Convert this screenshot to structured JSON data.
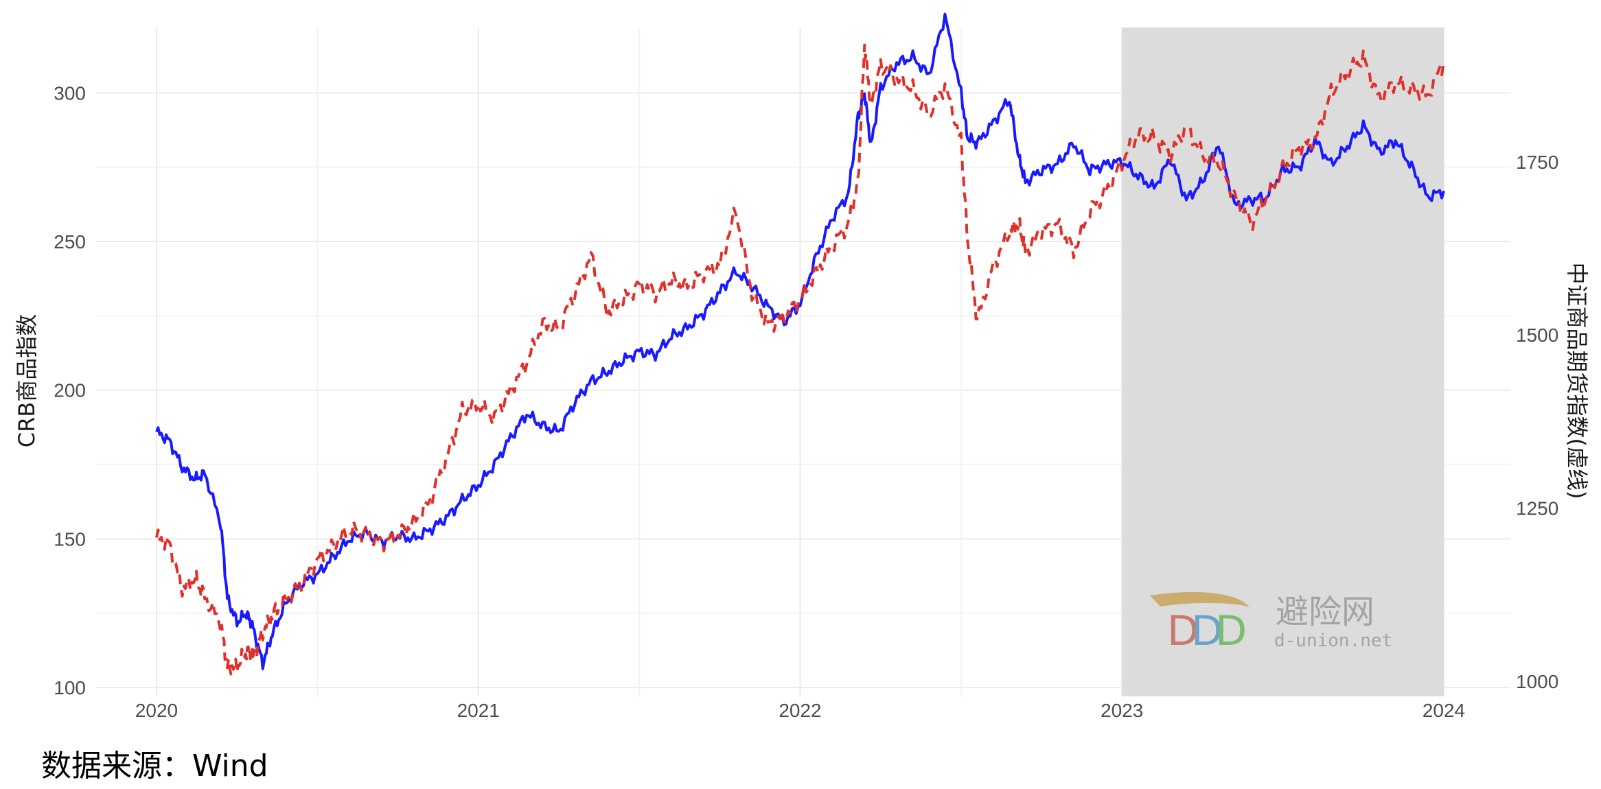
{
  "source_note": "数据来源：Wind",
  "watermark": {
    "name": "避险网",
    "domain": "d-union.net"
  },
  "colors": {
    "crb": "#1a1aff",
    "csi": "#e0302a",
    "shade": "#dcdcdc",
    "grid": "#ebebeb"
  },
  "chart_data": {
    "type": "line",
    "x_unit": "year",
    "x_ticks": [
      "2020",
      "2021",
      "2022",
      "2023",
      "2024"
    ],
    "xlim": [
      2020.0,
      2024.0
    ],
    "left_axis": {
      "label": "CRB商品指数",
      "ticks": [
        100,
        150,
        200,
        250,
        300
      ],
      "ylim": [
        97,
        322
      ]
    },
    "right_axis": {
      "label": "中证商品期货指数(虚线)",
      "ticks": [
        1000,
        1250,
        1500,
        1750
      ],
      "ylim": [
        978,
        1944
      ]
    },
    "shaded_region": [
      2023.0,
      2024.0
    ],
    "series": [
      {
        "name": "CRB商品指数",
        "axis": "left",
        "style": "solid",
        "x": [
          2020.0,
          2020.04,
          2020.08,
          2020.12,
          2020.15,
          2020.2,
          2020.22,
          2020.25,
          2020.28,
          2020.3,
          2020.33,
          2020.36,
          2020.4,
          2020.45,
          2020.5,
          2020.55,
          2020.6,
          2020.65,
          2020.7,
          2020.75,
          2020.8,
          2020.85,
          2020.9,
          2020.95,
          2021.0,
          2021.05,
          2021.1,
          2021.15,
          2021.2,
          2021.25,
          2021.3,
          2021.35,
          2021.4,
          2021.45,
          2021.5,
          2021.55,
          2021.6,
          2021.65,
          2021.7,
          2021.75,
          2021.8,
          2021.85,
          2021.9,
          2021.95,
          2022.0,
          2022.05,
          2022.1,
          2022.15,
          2022.18,
          2022.2,
          2022.22,
          2022.25,
          2022.3,
          2022.35,
          2022.4,
          2022.45,
          2022.5,
          2022.52,
          2022.55,
          2022.6,
          2022.65,
          2022.68,
          2022.7,
          2022.75,
          2022.8,
          2022.85,
          2022.9,
          2022.95,
          2023.0,
          2023.05,
          2023.1,
          2023.15,
          2023.2,
          2023.25,
          2023.3,
          2023.35,
          2023.4,
          2023.45,
          2023.5,
          2023.55,
          2023.6,
          2023.65,
          2023.7,
          2023.75,
          2023.8,
          2023.85,
          2023.9,
          2023.95,
          2024.0
        ],
        "values": [
          186,
          183,
          174,
          170,
          172,
          155,
          130,
          122,
          125,
          120,
          108,
          118,
          128,
          135,
          138,
          144,
          150,
          152,
          149,
          151,
          150,
          153,
          157,
          163,
          168,
          175,
          184,
          192,
          188,
          186,
          196,
          203,
          206,
          210,
          213,
          212,
          218,
          221,
          226,
          233,
          240,
          235,
          228,
          223,
          229,
          245,
          258,
          266,
          292,
          300,
          282,
          302,
          310,
          312,
          306,
          326,
          300,
          285,
          283,
          290,
          298,
          278,
          270,
          274,
          276,
          283,
          274,
          276,
          277,
          272,
          268,
          278,
          264,
          270,
          283,
          262,
          264,
          265,
          274,
          275,
          284,
          276,
          282,
          289,
          280,
          284,
          275,
          265,
          267
        ]
      },
      {
        "name": "中证商品期货指数(虚线)",
        "axis": "right",
        "style": "dashed",
        "x": [
          2020.0,
          2020.04,
          2020.08,
          2020.12,
          2020.15,
          2020.2,
          2020.22,
          2020.25,
          2020.28,
          2020.3,
          2020.33,
          2020.36,
          2020.4,
          2020.45,
          2020.5,
          2020.55,
          2020.6,
          2020.65,
          2020.7,
          2020.75,
          2020.8,
          2020.85,
          2020.9,
          2020.95,
          2021.0,
          2021.05,
          2021.1,
          2021.15,
          2021.2,
          2021.25,
          2021.3,
          2021.35,
          2021.4,
          2021.45,
          2021.5,
          2021.55,
          2021.6,
          2021.65,
          2021.7,
          2021.75,
          2021.8,
          2021.85,
          2021.9,
          2021.95,
          2022.0,
          2022.05,
          2022.1,
          2022.15,
          2022.18,
          2022.2,
          2022.22,
          2022.25,
          2022.3,
          2022.35,
          2022.4,
          2022.45,
          2022.5,
          2022.52,
          2022.55,
          2022.6,
          2022.65,
          2022.68,
          2022.7,
          2022.75,
          2022.8,
          2022.85,
          2022.9,
          2022.95,
          2023.0,
          2023.05,
          2023.1,
          2023.15,
          2023.2,
          2023.25,
          2023.3,
          2023.35,
          2023.4,
          2023.45,
          2023.5,
          2023.55,
          2023.6,
          2023.65,
          2023.7,
          2023.75,
          2023.8,
          2023.85,
          2023.9,
          2023.95,
          2024.0
        ],
        "values": [
          1208,
          1198,
          1133,
          1148,
          1122,
          1083,
          1020,
          1022,
          1043,
          1035,
          1070,
          1095,
          1118,
          1140,
          1175,
          1195,
          1220,
          1213,
          1200,
          1210,
          1230,
          1260,
          1320,
          1390,
          1400,
          1380,
          1420,
          1460,
          1515,
          1510,
          1560,
          1614,
          1533,
          1550,
          1573,
          1560,
          1578,
          1570,
          1590,
          1600,
          1680,
          1560,
          1515,
          1525,
          1550,
          1590,
          1630,
          1660,
          1720,
          1920,
          1830,
          1890,
          1870,
          1855,
          1820,
          1860,
          1780,
          1640,
          1520,
          1600,
          1650,
          1660,
          1620,
          1650,
          1660,
          1620,
          1680,
          1705,
          1750,
          1790,
          1785,
          1760,
          1800,
          1760,
          1750,
          1700,
          1660,
          1700,
          1740,
          1770,
          1780,
          1850,
          1880,
          1900,
          1840,
          1865,
          1855,
          1845,
          1895
        ]
      }
    ]
  }
}
